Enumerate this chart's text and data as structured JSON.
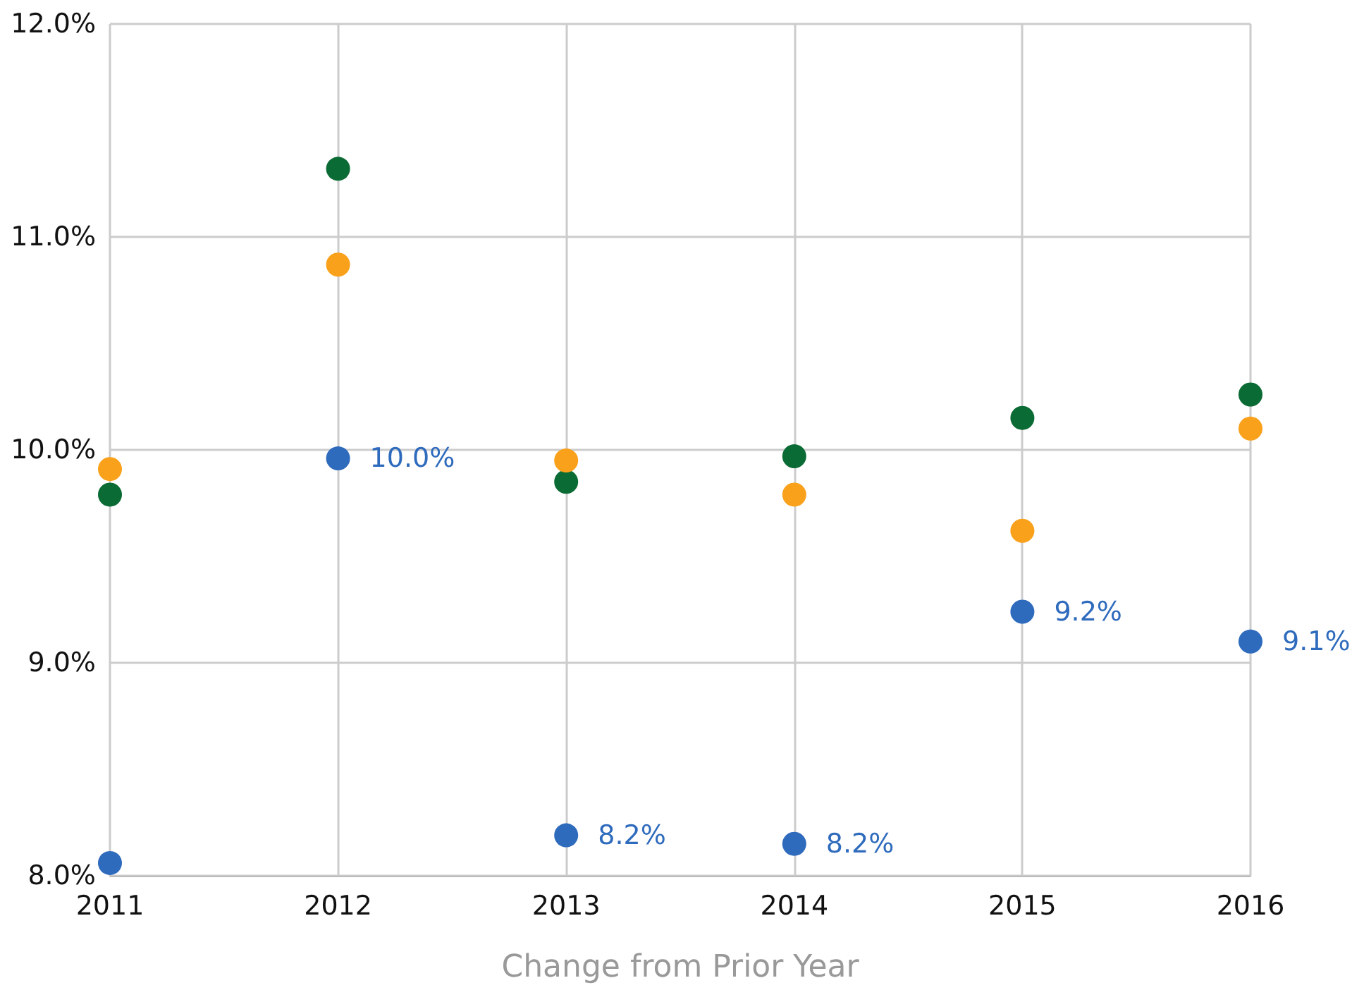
{
  "chart_data": {
    "type": "scatter",
    "xlabel": "Change from Prior Year",
    "categories": [
      "2011",
      "2012",
      "2013",
      "2014",
      "2015",
      "2016"
    ],
    "ylim": [
      8,
      12
    ],
    "yticks": [
      {
        "value": 8,
        "label": "8.0%"
      },
      {
        "value": 9,
        "label": "9.0%"
      },
      {
        "value": 10,
        "label": "10.0%"
      },
      {
        "value": 11,
        "label": "11.0%"
      },
      {
        "value": 12,
        "label": "12.0%"
      }
    ],
    "grid": true,
    "marker": "circle",
    "series": [
      {
        "color": "#0b6b35",
        "values": [
          9.79,
          11.32,
          9.85,
          9.97,
          10.15,
          10.26
        ]
      },
      {
        "color": "#f9a11b",
        "values": [
          9.91,
          10.87,
          9.95,
          9.79,
          9.62,
          10.1
        ]
      },
      {
        "color": "#2f6bbd",
        "values": [
          8.06,
          9.96,
          8.19,
          8.15,
          9.24,
          9.1
        ],
        "value_labels": [
          null,
          "10.0%",
          "8.2%",
          "8.2%",
          "9.2%",
          "9.1%"
        ]
      }
    ]
  }
}
